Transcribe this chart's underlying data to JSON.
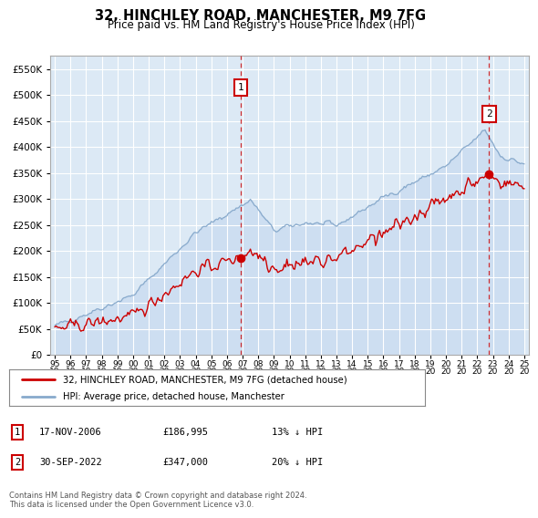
{
  "title": "32, HINCHLEY ROAD, MANCHESTER, M9 7FG",
  "subtitle": "Price paid vs. HM Land Registry's House Price Index (HPI)",
  "bg_color": "#dce9f5",
  "plot_bg": "#dce9f5",
  "grid_color": "#c8d8e8",
  "red_line_color": "#cc0000",
  "blue_line_color": "#88aacc",
  "blue_fill_color": "#c8daf0",
  "ylim": [
    0,
    575000
  ],
  "yticks": [
    0,
    50000,
    100000,
    150000,
    200000,
    250000,
    300000,
    350000,
    400000,
    450000,
    500000,
    550000
  ],
  "ytick_labels": [
    "£0",
    "£50K",
    "£100K",
    "£150K",
    "£200K",
    "£250K",
    "£300K",
    "£350K",
    "£400K",
    "£450K",
    "£500K",
    "£550K"
  ],
  "xlim_start": 1994.7,
  "xlim_end": 2025.3,
  "purchase1_x": 2006.88,
  "purchase1_y": 186995,
  "purchase2_x": 2022.75,
  "purchase2_y": 347000,
  "purchase1_date": "17-NOV-2006",
  "purchase1_price": "£186,995",
  "purchase1_hpi": "13% ↓ HPI",
  "purchase2_date": "30-SEP-2022",
  "purchase2_price": "£347,000",
  "purchase2_hpi": "20% ↓ HPI",
  "legend_line1": "32, HINCHLEY ROAD, MANCHESTER, M9 7FG (detached house)",
  "legend_line2": "HPI: Average price, detached house, Manchester",
  "footer": "Contains HM Land Registry data © Crown copyright and database right 2024.\nThis data is licensed under the Open Government Licence v3.0."
}
